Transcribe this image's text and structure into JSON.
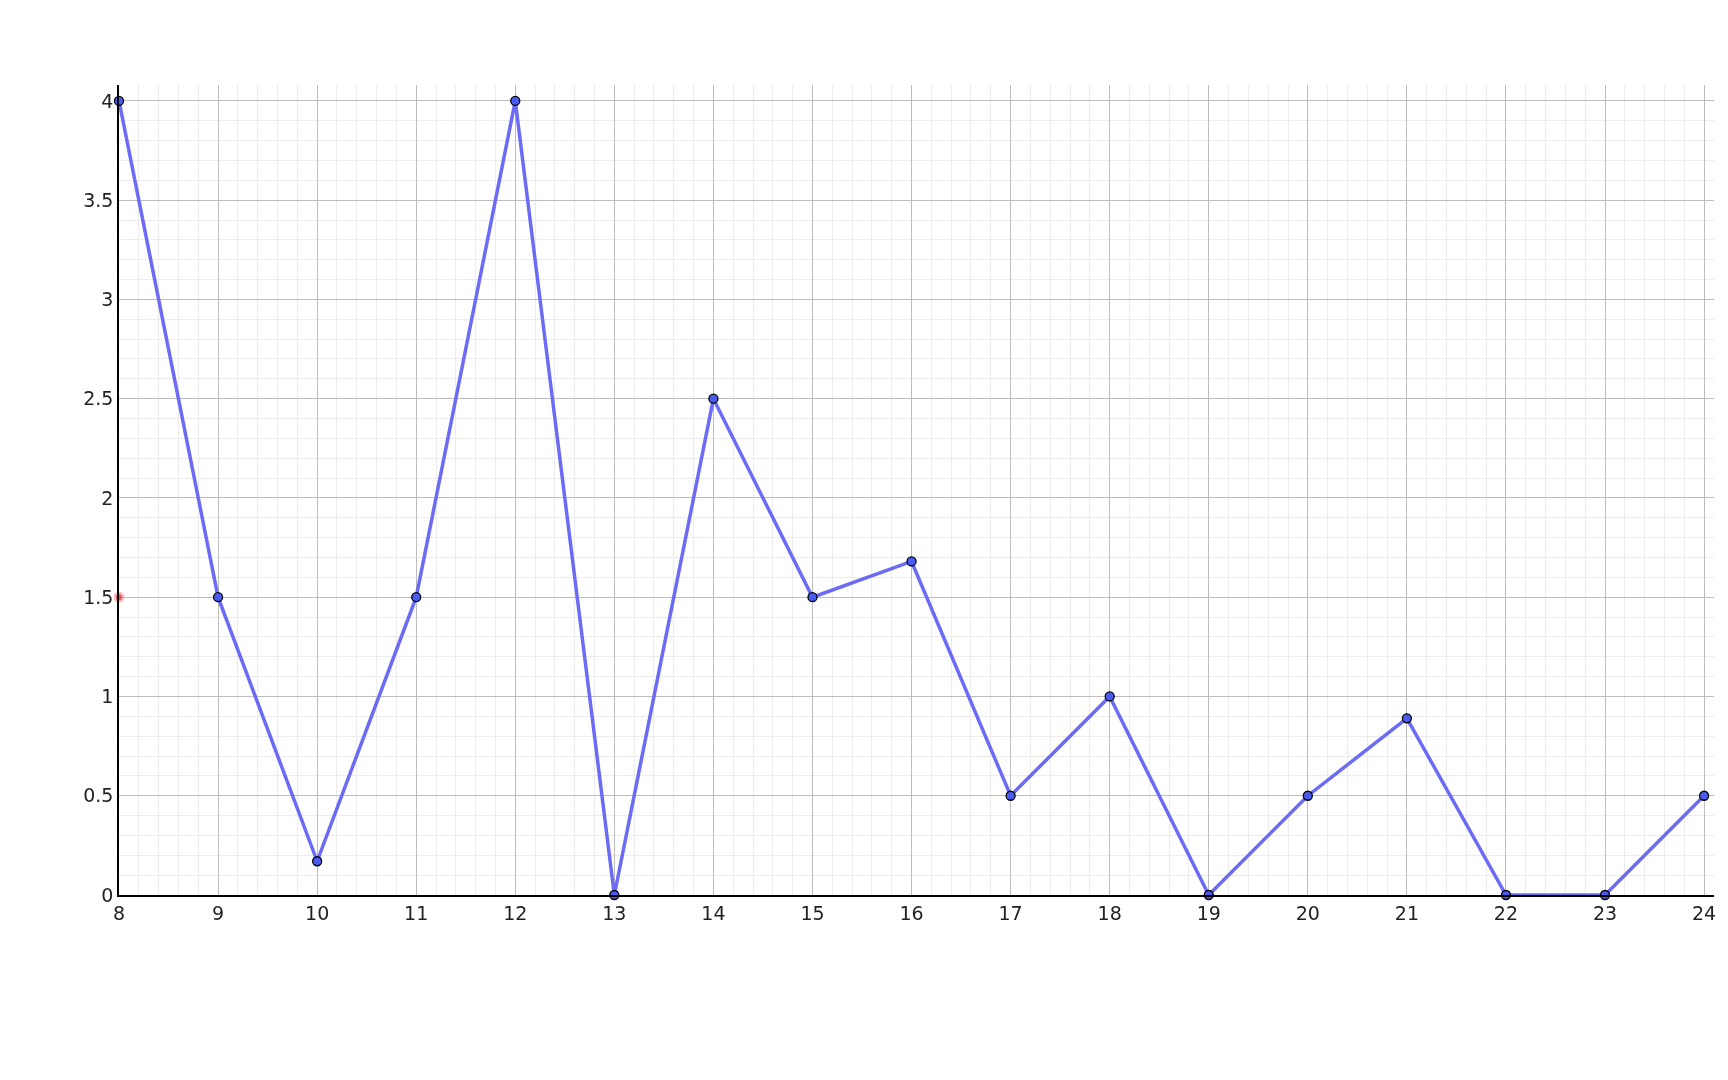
{
  "chart_data": {
    "type": "line",
    "x": [
      8,
      9,
      10,
      11,
      12,
      13,
      14,
      15,
      16,
      17,
      18,
      19,
      20,
      21,
      22,
      23,
      24
    ],
    "series": [
      {
        "color": "#6b6bf5",
        "values": [
          4,
          1.5,
          0.17,
          1.5,
          4,
          0,
          2.5,
          1.5,
          1.68,
          0.5,
          1,
          0,
          0.5,
          0.89,
          0,
          0,
          0.5
        ],
        "marker": "circle"
      },
      {
        "type": "scatter",
        "color": "#e0303c",
        "x": [
          8
        ],
        "values": [
          1.5
        ],
        "marker": "circle"
      }
    ],
    "xlim": [
      8,
      24.1
    ],
    "ylim": [
      0,
      4.08
    ],
    "xticks": [
      8,
      9,
      10,
      11,
      12,
      13,
      14,
      15,
      16,
      17,
      18,
      19,
      20,
      21,
      22,
      23,
      24
    ],
    "yticks": [
      0,
      0.5,
      1,
      1.5,
      2,
      2.5,
      3,
      3.5,
      4
    ],
    "grid": true,
    "line_style": "solid"
  }
}
